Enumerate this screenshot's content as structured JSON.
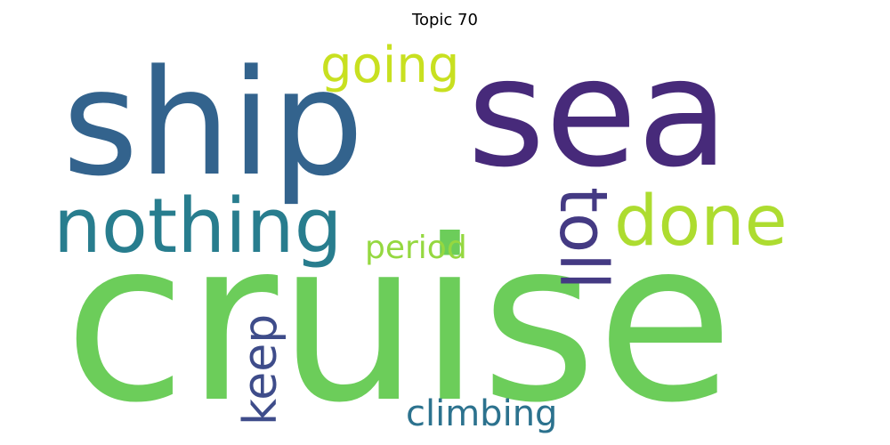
{
  "chart_data": {
    "type": "wordcloud",
    "title": "Topic 70",
    "words": [
      {
        "text": "cruise",
        "weight": 1.0,
        "color": "#6ccd5a"
      },
      {
        "text": "sea",
        "weight": 0.82,
        "color": "#472a7a"
      },
      {
        "text": "ship",
        "weight": 0.78,
        "color": "#33638d"
      },
      {
        "text": "nothing",
        "weight": 0.45,
        "color": "#287d8e"
      },
      {
        "text": "done",
        "weight": 0.4,
        "color": "#addc30"
      },
      {
        "text": "toll",
        "weight": 0.35,
        "color": "#443a83"
      },
      {
        "text": "going",
        "weight": 0.3,
        "color": "#c8e020"
      },
      {
        "text": "keep",
        "weight": 0.26,
        "color": "#3e4c8a"
      },
      {
        "text": "climbing",
        "weight": 0.22,
        "color": "#2c728e"
      },
      {
        "text": "period",
        "weight": 0.2,
        "color": "#95d840"
      }
    ]
  }
}
